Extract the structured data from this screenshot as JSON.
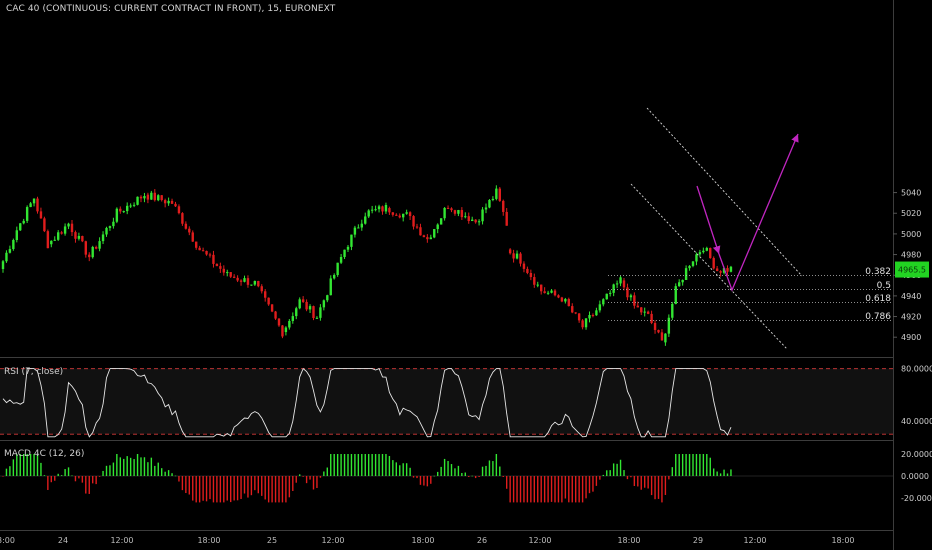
{
  "header": {
    "title": "CAC 40 (CONTINUOUS: CURRENT CONTRACT IN FRONT), 15, EURONEXT"
  },
  "colors": {
    "background": "#000000",
    "up": "#32e632",
    "down": "#e01d1d",
    "fib_line": "#bdbdbd",
    "channel": "#d9d9d9",
    "arrow": "#c026c0",
    "rsi_line": "#e6e6e6",
    "rsi_band": "#d63a3a",
    "price_badge": "#22d322"
  },
  "chart_data": {
    "type": "candlestick",
    "price_axis": {
      "ticks": [
        4900,
        4920,
        4940,
        4960,
        4980,
        5000,
        5020,
        5040
      ],
      "ylim": [
        4888,
        5050
      ]
    },
    "current_price": {
      "label": "4965.5",
      "value": 4965.5
    },
    "time_axis": [
      "3:00",
      "24",
      "12:00",
      "18:00",
      "25",
      "12:00",
      "18:00",
      "26",
      "12:00",
      "18:00",
      "29",
      "12:00",
      "18:00"
    ],
    "fib_levels": [
      {
        "label": "0.382",
        "value": 4960
      },
      {
        "label": "0.5",
        "value": 4947
      },
      {
        "label": "0.618",
        "value": 4934
      },
      {
        "label": "0.786",
        "value": 4917
      }
    ],
    "segments": [
      {
        "bars": 14,
        "start": 4966,
        "points": [
          [
            0,
            4966
          ],
          [
            5,
            5004
          ],
          [
            10,
            5035
          ],
          [
            14,
            4990
          ]
        ]
      },
      {
        "bars": 28,
        "start": 4990,
        "points": [
          [
            0,
            4990
          ],
          [
            6,
            5010
          ],
          [
            12,
            4978
          ],
          [
            20,
            5020
          ],
          [
            28,
            5038
          ]
        ]
      },
      {
        "bars": 40,
        "start": 5038,
        "points": [
          [
            0,
            5038
          ],
          [
            8,
            5030
          ],
          [
            16,
            4985
          ],
          [
            24,
            4960
          ],
          [
            32,
            4952
          ],
          [
            40,
            4905
          ]
        ]
      },
      {
        "bars": 30,
        "start": 4905,
        "points": [
          [
            0,
            4905
          ],
          [
            5,
            4935
          ],
          [
            10,
            4920
          ],
          [
            18,
            4985
          ],
          [
            24,
            5020
          ],
          [
            30,
            5025
          ]
        ]
      },
      {
        "bars": 35,
        "start": 5025,
        "points": [
          [
            0,
            5025
          ],
          [
            6,
            5018
          ],
          [
            12,
            4995
          ],
          [
            18,
            5028
          ],
          [
            26,
            5012
          ],
          [
            32,
            5040
          ],
          [
            35,
            5010
          ]
        ]
      },
      {
        "bars": 33,
        "start": 4985,
        "points": [
          [
            0,
            4985
          ],
          [
            4,
            4975
          ],
          [
            10,
            4945
          ],
          [
            16,
            4938
          ],
          [
            22,
            4910
          ],
          [
            27,
            4930
          ],
          [
            33,
            4955
          ]
        ]
      },
      {
        "bars": 12,
        "start": 4955,
        "points": [
          [
            0,
            4955
          ],
          [
            4,
            4930
          ],
          [
            8,
            4920
          ],
          [
            12,
            4895
          ]
        ]
      },
      {
        "bars": 20,
        "start": 4895,
        "points": [
          [
            0,
            4895
          ],
          [
            4,
            4945
          ],
          [
            8,
            4972
          ],
          [
            12,
            4988
          ],
          [
            16,
            4965
          ],
          [
            20,
            4966
          ]
        ]
      }
    ],
    "rsi": {
      "label": "RSI (7, close)",
      "ticks": [
        40,
        80
      ],
      "tick_labels": [
        "40.0000",
        "80.0000"
      ],
      "upper": 80,
      "lower": 30,
      "ylim": [
        24,
        82
      ]
    },
    "macd": {
      "label": "MACD 4C (12, 26)",
      "ticks": [
        20,
        0,
        -20
      ],
      "tick_labels": [
        "20.0000",
        "0.0000",
        "-20.0000"
      ],
      "ylim": [
        -28,
        22
      ]
    }
  }
}
